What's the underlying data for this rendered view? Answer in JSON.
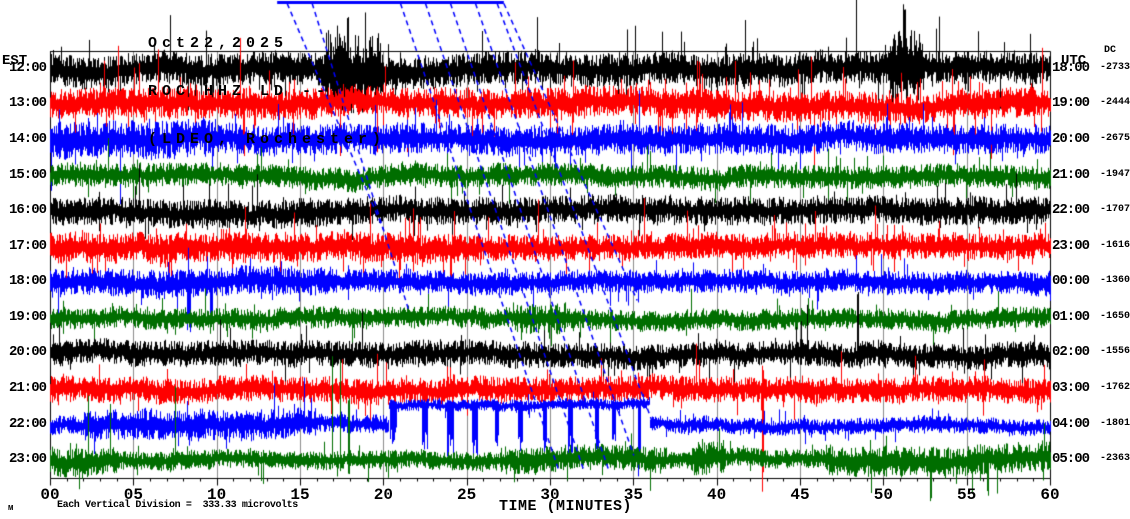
{
  "header": {
    "date": "Oct22,2025",
    "station": "ROC HHZ LD --",
    "location": "(LDEO, Rochester)"
  },
  "left_axis": {
    "zone": "EST"
  },
  "right_axis": {
    "zone": "UTC",
    "dc_header": "DC"
  },
  "x_axis": {
    "title": "TIME (MINUTES)",
    "ticks": [
      {
        "minute": 0,
        "label": "00"
      },
      {
        "minute": 5,
        "label": "05"
      },
      {
        "minute": 10,
        "label": "10"
      },
      {
        "minute": 15,
        "label": "15"
      },
      {
        "minute": 20,
        "label": "20"
      },
      {
        "minute": 25,
        "label": "25"
      },
      {
        "minute": 30,
        "label": "30"
      },
      {
        "minute": 35,
        "label": "35"
      },
      {
        "minute": 40,
        "label": "40"
      },
      {
        "minute": 45,
        "label": "45"
      },
      {
        "minute": 50,
        "label": "50"
      },
      {
        "minute": 55,
        "label": "55"
      },
      {
        "minute": 60,
        "label": "60"
      }
    ]
  },
  "footer": {
    "logo_glyph": "м",
    "scale_note": "Each Vertical Division =  333.33 microvolts"
  },
  "colors": {
    "black": "#000000",
    "red": "#ff0000",
    "blue": "#0000ff",
    "green": "#006e00",
    "grid": "#8c8c8c",
    "event": "#0000ff",
    "axis": "#000000",
    "background": "#ffffff"
  },
  "chart_data": {
    "type": "helicorder",
    "minutes_per_line": 60,
    "x_range_minutes": [
      0,
      60
    ],
    "grid_interval_minutes": 5,
    "minor_tick_minutes": 1,
    "rows": [
      {
        "est": "12:00",
        "utc": "18:00",
        "dc": "-2733",
        "color": "black",
        "profile": {
          "amp": 14,
          "sp": 0.08,
          "sm": 4.5,
          "seed": 11,
          "segs": [
            [
              16.5,
              20,
              34,
              0
            ],
            [
              50.4,
              52.4,
              30,
              0
            ]
          ],
          "spikes": [
            [
              17.8,
              60,
              25,
              2
            ],
            [
              50.9,
              55,
              20,
              2
            ],
            [
              51.2,
              66,
              22,
              3
            ],
            [
              51.6,
              58,
              18,
              2
            ]
          ]
        }
      },
      {
        "est": "13:00",
        "utc": "19:00",
        "dc": "-2444",
        "color": "red",
        "profile": {
          "amp": 13,
          "sp": 0.1,
          "sm": 4.5,
          "seed": 22,
          "segs": [],
          "spikes": [
            [
              31.4,
              45,
              18,
              1
            ],
            [
              38.8,
              55,
              22,
              1
            ],
            [
              27.9,
              48,
              15,
              1
            ]
          ]
        }
      },
      {
        "est": "14:00",
        "utc": "20:00",
        "dc": "-2675",
        "color": "blue",
        "profile": {
          "amp": 13,
          "sp": 0.06,
          "sm": 3.4,
          "seed": 33,
          "segs": [
            [
              0,
              10,
              16,
              0
            ]
          ],
          "spikes": []
        }
      },
      {
        "est": "15:00",
        "utc": "21:00",
        "dc": "-1947",
        "color": "green",
        "profile": {
          "amp": 10,
          "sp": 0.05,
          "sm": 3.0,
          "seed": 44,
          "segs": [],
          "spikes": []
        }
      },
      {
        "est": "16:00",
        "utc": "22:00",
        "dc": "-1707",
        "color": "black",
        "profile": {
          "amp": 12,
          "sp": 0.05,
          "sm": 3.0,
          "seed": 55,
          "segs": [],
          "spikes": []
        }
      },
      {
        "est": "17:00",
        "utc": "23:00",
        "dc": "-1616",
        "color": "red",
        "profile": {
          "amp": 11,
          "sp": 0.09,
          "sm": 3.8,
          "seed": 66,
          "segs": [
            [
              0,
              25,
              13,
              0
            ]
          ],
          "spikes": [
            [
              21.8,
              40,
              25,
              1
            ]
          ]
        }
      },
      {
        "est": "18:00",
        "utc": "00:00",
        "dc": "-1360",
        "color": "blue",
        "profile": {
          "amp": 10,
          "sp": 0.06,
          "sm": 3.0,
          "seed": 77,
          "segs": [
            [
              0,
              17,
              12,
              0
            ]
          ],
          "spikes": [
            [
              8.2,
              10,
              55,
              4
            ],
            [
              9.6,
              8,
              45,
              3
            ]
          ]
        }
      },
      {
        "est": "19:00",
        "utc": "01:00",
        "dc": "-1650",
        "color": "green",
        "profile": {
          "amp": 9,
          "sp": 0.05,
          "sm": 3.0,
          "seed": 88,
          "segs": [
            [
              28,
              31,
              13,
              0
            ]
          ],
          "spikes": [
            [
              9.3,
              40,
              10,
              1
            ]
          ]
        }
      },
      {
        "est": "20:00",
        "utc": "02:00",
        "dc": "-1556",
        "color": "black",
        "profile": {
          "amp": 11,
          "sp": 0.05,
          "sm": 3.0,
          "seed": 99,
          "segs": [],
          "spikes": [
            [
              45.4,
              55,
              12,
              1
            ],
            [
              48.4,
              95,
              12,
              2
            ]
          ]
        }
      },
      {
        "est": "21:00",
        "utc": "03:00",
        "dc": "-1762",
        "color": "red",
        "profile": {
          "amp": 11,
          "sp": 0.06,
          "sm": 3.2,
          "seed": 110,
          "segs": [],
          "spikes": [
            [
              24.0,
              30,
              10,
              1
            ],
            [
              42.7,
              25,
              107,
              2
            ],
            [
              41.0,
              26,
              12,
              1
            ]
          ]
        }
      },
      {
        "est": "22:00",
        "utc": "04:00",
        "dc": "-1801",
        "color": "blue",
        "profile": {
          "amp": 8,
          "sp": 0.06,
          "sm": 3.0,
          "seed": 121,
          "segs": [
            [
              2,
              16,
              13,
              0
            ],
            [
              20.3,
              36,
              5,
              -20
            ],
            [
              36,
              60,
              7,
              0
            ]
          ],
          "spikes": [
            [
              20.4,
              5,
              40,
              7
            ],
            [
              22.3,
              5,
              48,
              6
            ],
            [
              23.8,
              5,
              52,
              7
            ],
            [
              25.3,
              5,
              58,
              6
            ],
            [
              26.7,
              5,
              44,
              4
            ],
            [
              28.1,
              5,
              50,
              5
            ],
            [
              29.6,
              5,
              55,
              4
            ],
            [
              31.1,
              5,
              48,
              5
            ],
            [
              32.7,
              5,
              60,
              4
            ],
            [
              33.7,
              5,
              44,
              4
            ],
            [
              35.3,
              5,
              76,
              3
            ]
          ]
        }
      },
      {
        "est": "23:00",
        "utc": "05:00",
        "dc": "-2363",
        "color": "green",
        "profile": {
          "amp": 8,
          "sp": 0.05,
          "sm": 3.0,
          "seed": 132,
          "segs": [
            [
              0,
              4,
              12,
              0
            ],
            [
              27,
              37,
              11,
              0
            ],
            [
              38.5,
              40.5,
              14,
              0
            ],
            [
              46.5,
              60,
              13,
              0
            ]
          ],
          "spikes": [
            [
              2.3,
              100,
              10,
              1
            ],
            [
              3.6,
              85,
              10,
              1
            ],
            [
              7.5,
              75,
              8,
              1
            ],
            [
              12.8,
              8,
              32,
              1
            ],
            [
              16.9,
              165,
              10,
              1
            ],
            [
              17.4,
              115,
              12,
              1
            ],
            [
              17.9,
              70,
              15,
              2
            ],
            [
              19.1,
              8,
              30,
              1
            ],
            [
              31.0,
              8,
              26,
              1
            ],
            [
              36.0,
              10,
              34,
              1
            ],
            [
              40.0,
              28,
              8,
              1
            ],
            [
              52.8,
              10,
              42,
              2
            ],
            [
              56.2,
              12,
              40,
              2
            ],
            [
              56.8,
              10,
              36,
              1
            ],
            [
              59.6,
              8,
              25,
              1
            ]
          ]
        }
      }
    ],
    "event_overlay": {
      "bar": {
        "from_min": 13.6,
        "to_min": 27.2,
        "y": 2
      },
      "diagonals": [
        [
          14.2,
          3,
          20.0,
          230
        ],
        [
          15.7,
          3,
          21.5,
          310
        ],
        [
          21.0,
          3,
          30.5,
          470
        ],
        [
          22.5,
          3,
          32.0,
          470
        ],
        [
          24.0,
          3,
          33.5,
          470
        ],
        [
          25.5,
          3,
          35.0,
          455
        ],
        [
          26.8,
          3,
          36.3,
          430
        ],
        [
          27.2,
          3,
          35.2,
          300
        ]
      ]
    }
  }
}
